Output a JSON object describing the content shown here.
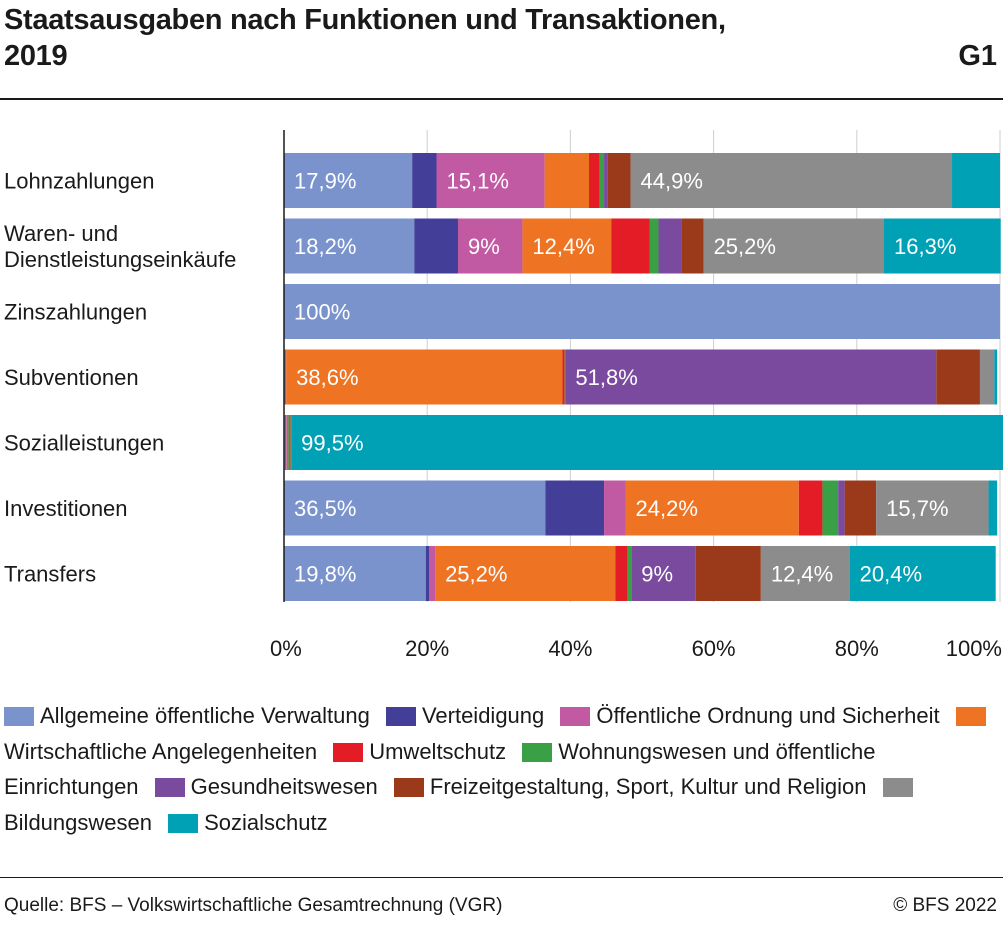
{
  "header": {
    "title_line1": "Staatsausgaben nach Funktionen und Transaktionen,",
    "title_line2": "2019",
    "code": "G1"
  },
  "footer": {
    "source": "Quelle: BFS – Volkswirtschaftliche Gesamtrechnung (VGR)",
    "copyright": "© BFS 2022"
  },
  "chart_data": {
    "type": "bar",
    "orientation": "horizontal",
    "stacked": true,
    "title": "Staatsausgaben nach Funktionen und Transaktionen, 2019",
    "xlim": [
      0,
      100
    ],
    "x_ticks": [
      "0%",
      "20%",
      "40%",
      "60%",
      "80%",
      "100%"
    ],
    "grid": true,
    "legend_position": "bottom",
    "categories": [
      {
        "label": [
          "Lohnzahlungen"
        ]
      },
      {
        "label": [
          "Waren- und",
          "Dienstleistungseinkäufe"
        ]
      },
      {
        "label": [
          "Zinszahlungen"
        ]
      },
      {
        "label": [
          "Subventionen"
        ]
      },
      {
        "label": [
          "Sozialleistungen"
        ]
      },
      {
        "label": [
          "Investitionen"
        ]
      },
      {
        "label": [
          "Transfers"
        ]
      }
    ],
    "series": [
      {
        "name": "Allgemeine öffentliche Verwaltung",
        "color": "#7a93cc",
        "values": [
          17.9,
          18.2,
          100,
          0.1,
          0.2,
          36.5,
          19.8
        ],
        "labels": [
          "17,9%",
          "18,2%",
          "100%",
          "",
          "",
          "36,5%",
          "19,8%"
        ]
      },
      {
        "name": "Verteidigung",
        "color": "#433e97",
        "values": [
          3.4,
          6.1,
          0,
          0.1,
          0.1,
          8.2,
          0.5
        ],
        "labels": [
          "",
          "",
          "",
          "",
          "",
          "",
          ""
        ]
      },
      {
        "name": "Öffentliche Ordnung und Sicherheit",
        "color": "#c159a3",
        "values": [
          15.1,
          9.0,
          0,
          0.1,
          0.1,
          3.0,
          0.8
        ],
        "labels": [
          "15,1%",
          "9%",
          "",
          "",
          "",
          "",
          ""
        ]
      },
      {
        "name": "Wirtschaftliche Angelegenheiten",
        "color": "#ee7424",
        "values": [
          6.2,
          12.4,
          0,
          38.6,
          0.1,
          24.2,
          25.2
        ],
        "labels": [
          "",
          "12,4%",
          "",
          "38,6%",
          "",
          "24,2%",
          "25,2%"
        ]
      },
      {
        "name": "Umweltschutz",
        "color": "#e31c25",
        "values": [
          1.5,
          5.4,
          0,
          0.3,
          0.1,
          3.3,
          1.7
        ],
        "labels": [
          "",
          "",
          "",
          "",
          "",
          "",
          ""
        ]
      },
      {
        "name": "Wohnungswesen und öffentliche Einrichtungen",
        "color": "#39a046",
        "values": [
          0.6,
          1.2,
          0,
          0.1,
          0.1,
          2.2,
          0.5
        ],
        "labels": [
          "",
          "",
          "",
          "",
          "",
          "",
          ""
        ]
      },
      {
        "name": "Gesundheitswesen",
        "color": "#7a4a9e",
        "values": [
          0.5,
          3.2,
          0,
          51.8,
          0.1,
          0.9,
          9.0
        ],
        "labels": [
          "",
          "",
          "",
          "51,8%",
          "",
          "",
          "9%"
        ]
      },
      {
        "name": "Freizeitgestaltung, Sport, Kultur und Religion",
        "color": "#9a3a1a",
        "values": [
          3.2,
          3.1,
          0,
          6.1,
          0.1,
          4.4,
          9.1
        ],
        "labels": [
          "",
          "",
          "",
          "",
          "",
          "",
          ""
        ]
      },
      {
        "name": "Bildungswesen",
        "color": "#8c8c8c",
        "values": [
          44.9,
          25.2,
          0,
          2.0,
          0.1,
          15.7,
          12.4
        ],
        "labels": [
          "44,9%",
          "25,2%",
          "",
          "",
          "",
          "15,7%",
          "12,4%"
        ]
      },
      {
        "name": "Sozialschutz",
        "color": "#00a0b5",
        "values": [
          6.7,
          16.3,
          0,
          0.4,
          99.5,
          1.2,
          20.4
        ],
        "labels": [
          "",
          "16,3%",
          "",
          "",
          "99,5%",
          "",
          "20,4%"
        ]
      }
    ]
  }
}
